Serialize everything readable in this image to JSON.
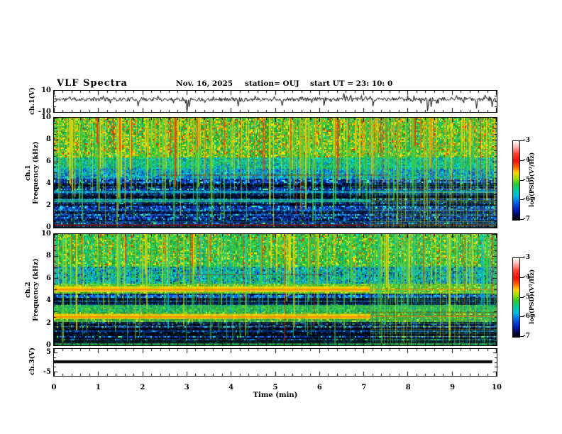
{
  "title": {
    "main": "VLF Spectra",
    "date": "Nov. 16, 2025",
    "station": "station= OUJ",
    "start_ut": "start UT =  23: 10: 0"
  },
  "x_axis": {
    "label": "Time (min)",
    "min": 0,
    "max": 10,
    "major_step": 1,
    "minor_step": 0.2,
    "tick_labels": [
      "0",
      "1",
      "2",
      "3",
      "4",
      "5",
      "6",
      "7",
      "8",
      "9",
      "10"
    ]
  },
  "colorbar": {
    "label": "log(PSD)(V²/Hz)",
    "tick_labels": [
      "-3",
      "-4",
      "-5",
      "-6",
      "-7"
    ],
    "range": [
      -3,
      -7
    ],
    "gradient": [
      [
        "0%",
        "#ffffff"
      ],
      [
        "7%",
        "#ffb8b8"
      ],
      [
        "16%",
        "#ff4030"
      ],
      [
        "25%",
        "#f01000"
      ],
      [
        "33%",
        "#ff6000"
      ],
      [
        "40%",
        "#ffd000"
      ],
      [
        "47%",
        "#a0e000"
      ],
      [
        "54%",
        "#30c830"
      ],
      [
        "63%",
        "#00c8a0"
      ],
      [
        "70%",
        "#00b8e0"
      ],
      [
        "78%",
        "#0060e0"
      ],
      [
        "88%",
        "#0018b0"
      ],
      [
        "96%",
        "#000430"
      ],
      [
        "100%",
        "#000000"
      ]
    ]
  },
  "chart_data": [
    {
      "id": "ch1_waveform",
      "type": "line",
      "ylabel": "ch.1(V)",
      "ylim": [
        -10,
        10
      ],
      "xlim": [
        0,
        10
      ],
      "ytick_labels": [
        {
          "v": 10,
          "text": "10"
        },
        {
          "v": -10,
          "text": "-10"
        }
      ],
      "yticks": [
        {
          "v": 5,
          "len": 3
        },
        {
          "v": 0,
          "len": 3
        },
        {
          "v": -5,
          "len": 3
        }
      ],
      "baseline_v": 2,
      "noise_v": 1.8,
      "seed": 11,
      "spikes": [
        [
          0.35,
          4.5
        ],
        [
          1.1,
          5
        ],
        [
          1.9,
          -4.5
        ],
        [
          2.35,
          5
        ],
        [
          3.0,
          -10.5
        ],
        [
          3.05,
          -5
        ],
        [
          3.6,
          4.5
        ],
        [
          4.15,
          -4.5
        ],
        [
          4.55,
          5
        ],
        [
          5.15,
          -4
        ],
        [
          5.6,
          4.5
        ],
        [
          6.1,
          -4
        ],
        [
          6.55,
          7.5
        ],
        [
          6.62,
          5
        ],
        [
          7.2,
          -4.5
        ],
        [
          7.8,
          4.5
        ],
        [
          8.45,
          -9
        ],
        [
          8.52,
          -5
        ],
        [
          9.1,
          5.5
        ],
        [
          9.55,
          -6.5
        ],
        [
          9.75,
          6
        ],
        [
          9.9,
          -5
        ]
      ]
    },
    {
      "id": "ch1_spectrogram",
      "type": "heatmap",
      "ylabel_lines": "ch.1\nFrequency (kHz)",
      "ylim": [
        0,
        10
      ],
      "xlim": [
        0,
        10
      ],
      "seed": 7,
      "ytick_labels": [
        {
          "v": 10,
          "text": "10"
        },
        {
          "v": 8,
          "text": "8"
        },
        {
          "v": 6,
          "text": "6"
        },
        {
          "v": 4,
          "text": "4"
        },
        {
          "v": 2,
          "text": "2"
        },
        {
          "v": 0,
          "text": "0"
        }
      ],
      "transition_time": 7.15,
      "zones": [
        {
          "f0": 6.4,
          "f1": 10,
          "base": "#2db83d",
          "speckle": [
            [
              "#b8d822",
              0.22
            ],
            [
              "#ffd000",
              0.1
            ],
            [
              "#ff7700",
              0.05
            ],
            [
              "#ff2200",
              0.03
            ],
            [
              "#19c8a0",
              0.08
            ]
          ]
        },
        {
          "f0": 5.3,
          "f1": 6.4,
          "base": "#16b88a",
          "speckle": [
            [
              "#2db83d",
              0.2
            ],
            [
              "#00c8d8",
              0.18
            ],
            [
              "#0878d8",
              0.08
            ]
          ]
        },
        {
          "f0": 4.4,
          "f1": 5.3,
          "base": "#1090cc",
          "speckle": [
            [
              "#16b88a",
              0.16
            ],
            [
              "#00c8e8",
              0.14
            ],
            [
              "#0848c8",
              0.16
            ],
            [
              "#2db83d",
              0.07
            ]
          ]
        },
        {
          "f0": 0,
          "f1": 4.4,
          "base": "#071a52",
          "stripes": true,
          "speckle": [
            [
              "#0d35a0",
              0.2
            ],
            [
              "#00081c",
              0.24
            ],
            [
              "#1460d8",
              0.08
            ],
            [
              "#00a8d8",
              0.05
            ],
            [
              "#2db83d",
              0.03
            ]
          ]
        }
      ],
      "bands": [
        {
          "f": 3.25,
          "h": 0.22,
          "color": "#18c8e0",
          "a": 0.7,
          "t": [
            0,
            10
          ]
        },
        {
          "f": 2.45,
          "h": 0.28,
          "color": "#20d0b0",
          "a": 0.7,
          "t": [
            0,
            7.15
          ]
        },
        {
          "f": 1.6,
          "h": 0.12,
          "color": "#1878d0",
          "a": 0.5,
          "t": [
            0,
            10
          ]
        },
        {
          "f": 0.55,
          "h": 0.08,
          "color": "#0a3f9f",
          "a": 0.6,
          "t": [
            0,
            10
          ]
        },
        {
          "f": 0.22,
          "h": 0.12,
          "color": "#990f0f",
          "a": 0.95,
          "t": [
            0,
            10
          ]
        },
        {
          "f": 4.78,
          "h": 0.06,
          "color": "#7a3008",
          "a": 0.8,
          "t": [
            2.4,
            7.6
          ]
        }
      ],
      "streaks": {
        "count": 300,
        "palette": [
          [
            "#ffd800",
            0.3
          ],
          [
            "#ffa000",
            0.2
          ],
          [
            "#ff3000",
            0.12
          ],
          [
            "#b8d822",
            0.18
          ],
          [
            "#38d048",
            0.2
          ]
        ],
        "depths": [
          [
            0.5,
            4.3,
            5.6
          ],
          [
            0.3,
            2.0,
            4.3
          ],
          [
            0.2,
            0,
            2.0
          ]
        ]
      },
      "hlines": {
        "count": 10,
        "f_below": 4.4,
        "colors": [
          "#2f9f4f",
          "#bfbf20"
        ],
        "alpha": [
          0.18,
          0.35
        ]
      },
      "post_overlay": {
        "vline_colors": [
          "#48c838",
          "#b8d020",
          "#18a0d0"
        ],
        "v_gap": [
          2,
          6
        ],
        "v_alpha": [
          0.2,
          0.55
        ],
        "hline_f_below": 4.6,
        "hline_colors": [
          "#38b860",
          "#c8c020"
        ],
        "h_gap": [
          2,
          5
        ],
        "h_alpha": [
          0.2,
          0.45
        ]
      }
    },
    {
      "id": "ch2_spectrogram",
      "type": "heatmap",
      "ylabel_lines": "ch.2\nFrequency (kHz)",
      "ylim": [
        0,
        10
      ],
      "xlim": [
        0,
        10
      ],
      "seed": 23,
      "ytick_labels": [
        {
          "v": 10,
          "text": "10"
        },
        {
          "v": 8,
          "text": "8"
        },
        {
          "v": 6,
          "text": "6"
        },
        {
          "v": 4,
          "text": "4"
        },
        {
          "v": 2,
          "text": "2"
        },
        {
          "v": 0,
          "text": "0"
        }
      ],
      "transition_time": 7.15,
      "zones": [
        {
          "f0": 7.1,
          "f1": 10,
          "base": "#2db83d",
          "speckle": [
            [
              "#b8d822",
              0.2
            ],
            [
              "#00d0a8",
              0.12
            ],
            [
              "#ffd000",
              0.05
            ],
            [
              "#ff3000",
              0.03
            ]
          ]
        },
        {
          "f0": 5.5,
          "f1": 7.1,
          "base": "#14a8b4",
          "speckle": [
            [
              "#2db83d",
              0.24
            ],
            [
              "#0868d0",
              0.14
            ],
            [
              "#00d0d0",
              0.12
            ],
            [
              "#06307c",
              0.08
            ]
          ]
        },
        {
          "f0": 4.6,
          "f1": 5.5,
          "base": "#53c32d",
          "speckle": [
            [
              "#b8d822",
              0.28
            ],
            [
              "#2db83d",
              0.2
            ]
          ]
        },
        {
          "f0": 3.6,
          "f1": 4.6,
          "base": "#0a2f8c",
          "stripes": true,
          "speckle": [
            [
              "#0d48c0",
              0.2
            ],
            [
              "#020c30",
              0.22
            ],
            [
              "#00a0c8",
              0.06
            ],
            [
              "#2db83d",
              0.05
            ]
          ]
        },
        {
          "f0": 3.0,
          "f1": 3.6,
          "base": "#28b455",
          "speckle": [
            [
              "#53c32d",
              0.24
            ],
            [
              "#0aa0a0",
              0.1
            ]
          ]
        },
        {
          "f0": 2.15,
          "f1": 3.0,
          "base": "#3aa83a",
          "speckle": [
            [
              "#b8d822",
              0.2
            ],
            [
              "#16a880",
              0.1
            ]
          ]
        },
        {
          "f0": 0,
          "f1": 2.15,
          "base": "#05143c",
          "stripes": true,
          "speckle": [
            [
              "#0a2f8c",
              0.2
            ],
            [
              "#000814",
              0.24
            ],
            [
              "#0f55c8",
              0.08
            ],
            [
              "#00a8d8",
              0.06
            ],
            [
              "#2db83d",
              0.03
            ]
          ]
        }
      ],
      "bands": [
        {
          "f": 5.05,
          "h": 0.5,
          "color": "#ffd400",
          "a": 0.92,
          "t": [
            0,
            7.15
          ],
          "core": {
            "f": 5.0,
            "h": 0.16,
            "color": "#ff8800"
          }
        },
        {
          "f": 2.6,
          "h": 0.45,
          "color": "#ffd400",
          "a": 0.92,
          "t": [
            0,
            7.15
          ],
          "core": {
            "f": 2.55,
            "h": 0.14,
            "color": "#ff8800"
          }
        },
        {
          "f": 5.02,
          "h": 0.1,
          "color": "#ff8800",
          "a": 0.85,
          "t": [
            7.15,
            10
          ]
        },
        {
          "f": 2.62,
          "h": 0.1,
          "color": "#c04810",
          "a": 0.85,
          "t": [
            7.15,
            10
          ]
        },
        {
          "f": 2.95,
          "h": 0.06,
          "color": "#7a3008",
          "a": 0.7,
          "t": [
            7.15,
            10
          ]
        },
        {
          "f": 6.35,
          "h": 0.06,
          "color": "#7a3008",
          "a": 0.7,
          "t": [
            2.9,
            6.3
          ]
        },
        {
          "f": 1.3,
          "h": 0.1,
          "color": "#0a50b0",
          "a": 0.5,
          "t": [
            0,
            10
          ]
        },
        {
          "f": 0.1,
          "h": 0.14,
          "color": "#28c050",
          "a": 0.9,
          "t": [
            0,
            10
          ]
        }
      ],
      "streaks": {
        "count": 260,
        "palette": [
          [
            "#ffd800",
            0.2
          ],
          [
            "#ff3000",
            0.12
          ],
          [
            "#b8d822",
            0.2
          ],
          [
            "#38d048",
            0.3
          ],
          [
            "#00c8d8",
            0.18
          ]
        ],
        "depths": [
          [
            0.45,
            4.4,
            5.6
          ],
          [
            0.25,
            3.0,
            4.4
          ],
          [
            0.3,
            0,
            2.5
          ]
        ]
      },
      "hlines": {
        "count": 12,
        "f_below": 4.6,
        "colors": [
          "#2f9f4f",
          "#bfbf20"
        ],
        "alpha": [
          0.18,
          0.35
        ]
      },
      "post_overlay": {
        "vline_colors": [
          "#48c838",
          "#b8d020",
          "#18a0d0"
        ],
        "v_gap": [
          2,
          5
        ],
        "v_alpha": [
          0.2,
          0.55
        ],
        "hline_f_below": 5.5,
        "hline_colors": [
          "#38b860",
          "#c8c020"
        ],
        "h_gap": [
          2,
          5
        ],
        "h_alpha": [
          0.2,
          0.45
        ]
      }
    },
    {
      "id": "ch3_waveform",
      "type": "line",
      "ylabel": "ch.3(V)",
      "ylim": [
        -7,
        7
      ],
      "xlim": [
        0,
        10
      ],
      "seed": 5,
      "ytick_labels": [
        {
          "v": 5,
          "text": "5"
        },
        {
          "v": -5,
          "text": "-5"
        }
      ],
      "yticks": [
        {
          "v": 5,
          "len": 5
        },
        {
          "v": 2.5,
          "len": 3
        },
        {
          "v": 0,
          "len": 3
        },
        {
          "v": -2.5,
          "len": 3
        },
        {
          "v": -5,
          "len": 5
        }
      ],
      "flat_line": {
        "v": 0.3,
        "thickness": 4,
        "t0": 0,
        "t1": 9.9
      }
    }
  ]
}
